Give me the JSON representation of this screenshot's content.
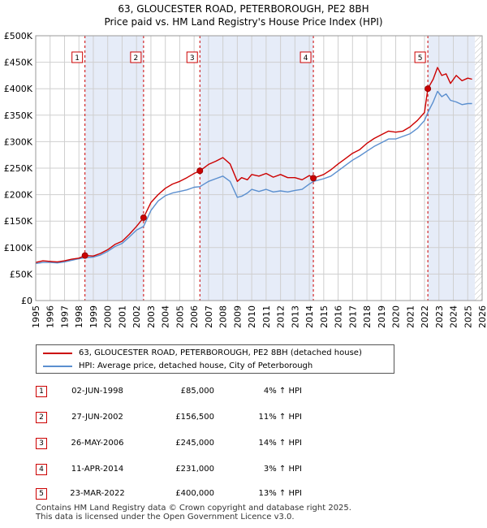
{
  "title": "63, GLOUCESTER ROAD, PETERBOROUGH, PE2 8BH",
  "subtitle": "Price paid vs. HM Land Registry's House Price Index (HPI)",
  "legend": {
    "property": "63, GLOUCESTER ROAD, PETERBOROUGH, PE2 8BH (detached house)",
    "hpi": "HPI: Average price, detached house, City of Peterborough"
  },
  "colors": {
    "property": "#cc0000",
    "hpi": "#5b8fcf",
    "shade": "#e6ecf8",
    "grid": "#cfcfcf"
  },
  "sales": [
    {
      "num": "1",
      "date": "02-JUN-1998",
      "price": "£85,000",
      "hpi": "4% ↑ HPI"
    },
    {
      "num": "2",
      "date": "27-JUN-2002",
      "price": "£156,500",
      "hpi": "11% ↑ HPI"
    },
    {
      "num": "3",
      "date": "26-MAY-2006",
      "price": "£245,000",
      "hpi": "14% ↑ HPI"
    },
    {
      "num": "4",
      "date": "11-APR-2014",
      "price": "£231,000",
      "hpi": "3% ↑ HPI"
    },
    {
      "num": "5",
      "date": "23-MAR-2022",
      "price": "£400,000",
      "hpi": "13% ↑ HPI"
    }
  ],
  "footer": {
    "line1": "Contains HM Land Registry data © Crown copyright and database right 2025.",
    "line2": "This data is licensed under the Open Government Licence v3.0."
  },
  "chart_data": {
    "type": "line",
    "xlim": [
      1995,
      2026
    ],
    "ylim": [
      0,
      500000
    ],
    "yticks": [
      0,
      50000,
      100000,
      150000,
      200000,
      250000,
      300000,
      350000,
      400000,
      450000,
      500000
    ],
    "ytick_labels": [
      "£0",
      "£50K",
      "£100K",
      "£150K",
      "£200K",
      "£250K",
      "£300K",
      "£350K",
      "£400K",
      "£450K",
      "£500K"
    ],
    "xticks": [
      1995,
      1996,
      1997,
      1998,
      1999,
      2000,
      2001,
      2002,
      2003,
      2004,
      2005,
      2006,
      2007,
      2008,
      2009,
      2010,
      2011,
      2012,
      2013,
      2014,
      2015,
      2016,
      2017,
      2018,
      2019,
      2020,
      2021,
      2022,
      2023,
      2024,
      2025,
      2026
    ],
    "shaded_ranges": [
      [
        1998.42,
        2002.49
      ],
      [
        2006.4,
        2014.28
      ],
      [
        2022.23,
        2025.5
      ]
    ],
    "hatched_from": 2025.5,
    "sale_markers": [
      {
        "label": "1",
        "x": 1998.42,
        "y": 85000
      },
      {
        "label": "2",
        "x": 2002.49,
        "y": 156500
      },
      {
        "label": "3",
        "x": 2006.4,
        "y": 245000
      },
      {
        "label": "4",
        "x": 2014.28,
        "y": 231000
      },
      {
        "label": "5",
        "x": 2022.23,
        "y": 400000
      }
    ],
    "series": [
      {
        "name": "63, GLOUCESTER ROAD, PETERBOROUGH, PE2 8BH (detached house)",
        "x": [
          1995,
          1995.5,
          1996,
          1996.5,
          1997,
          1997.5,
          1998,
          1998.42,
          1999,
          1999.5,
          2000,
          2000.5,
          2001,
          2001.5,
          2002,
          2002.49,
          2003,
          2003.5,
          2004,
          2004.5,
          2005,
          2005.5,
          2006,
          2006.4,
          2007,
          2007.5,
          2008,
          2008.5,
          2009,
          2009.3,
          2009.7,
          2010,
          2010.5,
          2011,
          2011.5,
          2012,
          2012.5,
          2013,
          2013.5,
          2014,
          2014.28,
          2015,
          2015.5,
          2016,
          2016.5,
          2017,
          2017.5,
          2018,
          2018.5,
          2019,
          2019.5,
          2020,
          2020.5,
          2021,
          2021.5,
          2022,
          2022.23,
          2022.6,
          2022.9,
          2023.2,
          2023.5,
          2023.8,
          2024.2,
          2024.6,
          2025,
          2025.3
        ],
        "y": [
          72000,
          75000,
          74000,
          73000,
          75000,
          78000,
          80000,
          85000,
          84000,
          89000,
          96000,
          106000,
          112000,
          125000,
          140000,
          156500,
          185000,
          200000,
          212000,
          220000,
          225000,
          232000,
          240000,
          245000,
          257000,
          263000,
          270000,
          258000,
          225000,
          232000,
          228000,
          238000,
          235000,
          240000,
          233000,
          238000,
          232000,
          232000,
          228000,
          236000,
          231000,
          238000,
          247000,
          258000,
          268000,
          278000,
          285000,
          297000,
          306000,
          313000,
          320000,
          318000,
          320000,
          328000,
          340000,
          355000,
          400000,
          418000,
          440000,
          425000,
          428000,
          410000,
          425000,
          415000,
          420000,
          418000
        ]
      },
      {
        "name": "HPI: Average price, detached house, City of Peterborough",
        "x": [
          1995,
          1995.5,
          1996,
          1996.5,
          1997,
          1997.5,
          1998,
          1998.42,
          1999,
          1999.5,
          2000,
          2000.5,
          2001,
          2001.5,
          2002,
          2002.49,
          2003,
          2003.5,
          2004,
          2004.5,
          2005,
          2005.5,
          2006,
          2006.4,
          2007,
          2007.5,
          2008,
          2008.5,
          2009,
          2009.3,
          2009.7,
          2010,
          2010.5,
          2011,
          2011.5,
          2012,
          2012.5,
          2013,
          2013.5,
          2014,
          2014.28,
          2015,
          2015.5,
          2016,
          2016.5,
          2017,
          2017.5,
          2018,
          2018.5,
          2019,
          2019.5,
          2020,
          2020.5,
          2021,
          2021.5,
          2022,
          2022.23,
          2022.6,
          2022.9,
          2023.2,
          2023.5,
          2023.8,
          2024.2,
          2024.6,
          2025,
          2025.3
        ],
        "y": [
          70000,
          72000,
          72000,
          71000,
          73000,
          76000,
          79000,
          81000,
          82000,
          86000,
          93000,
          102000,
          108000,
          120000,
          133000,
          140000,
          170000,
          188000,
          198000,
          203000,
          206000,
          209000,
          214000,
          215000,
          225000,
          230000,
          235000,
          225000,
          195000,
          197000,
          203000,
          210000,
          206000,
          210000,
          205000,
          207000,
          205000,
          208000,
          210000,
          220000,
          225000,
          230000,
          235000,
          245000,
          255000,
          265000,
          273000,
          282000,
          291000,
          298000,
          305000,
          305000,
          310000,
          315000,
          325000,
          340000,
          355000,
          375000,
          395000,
          385000,
          390000,
          378000,
          375000,
          370000,
          372000,
          372000
        ]
      }
    ]
  }
}
